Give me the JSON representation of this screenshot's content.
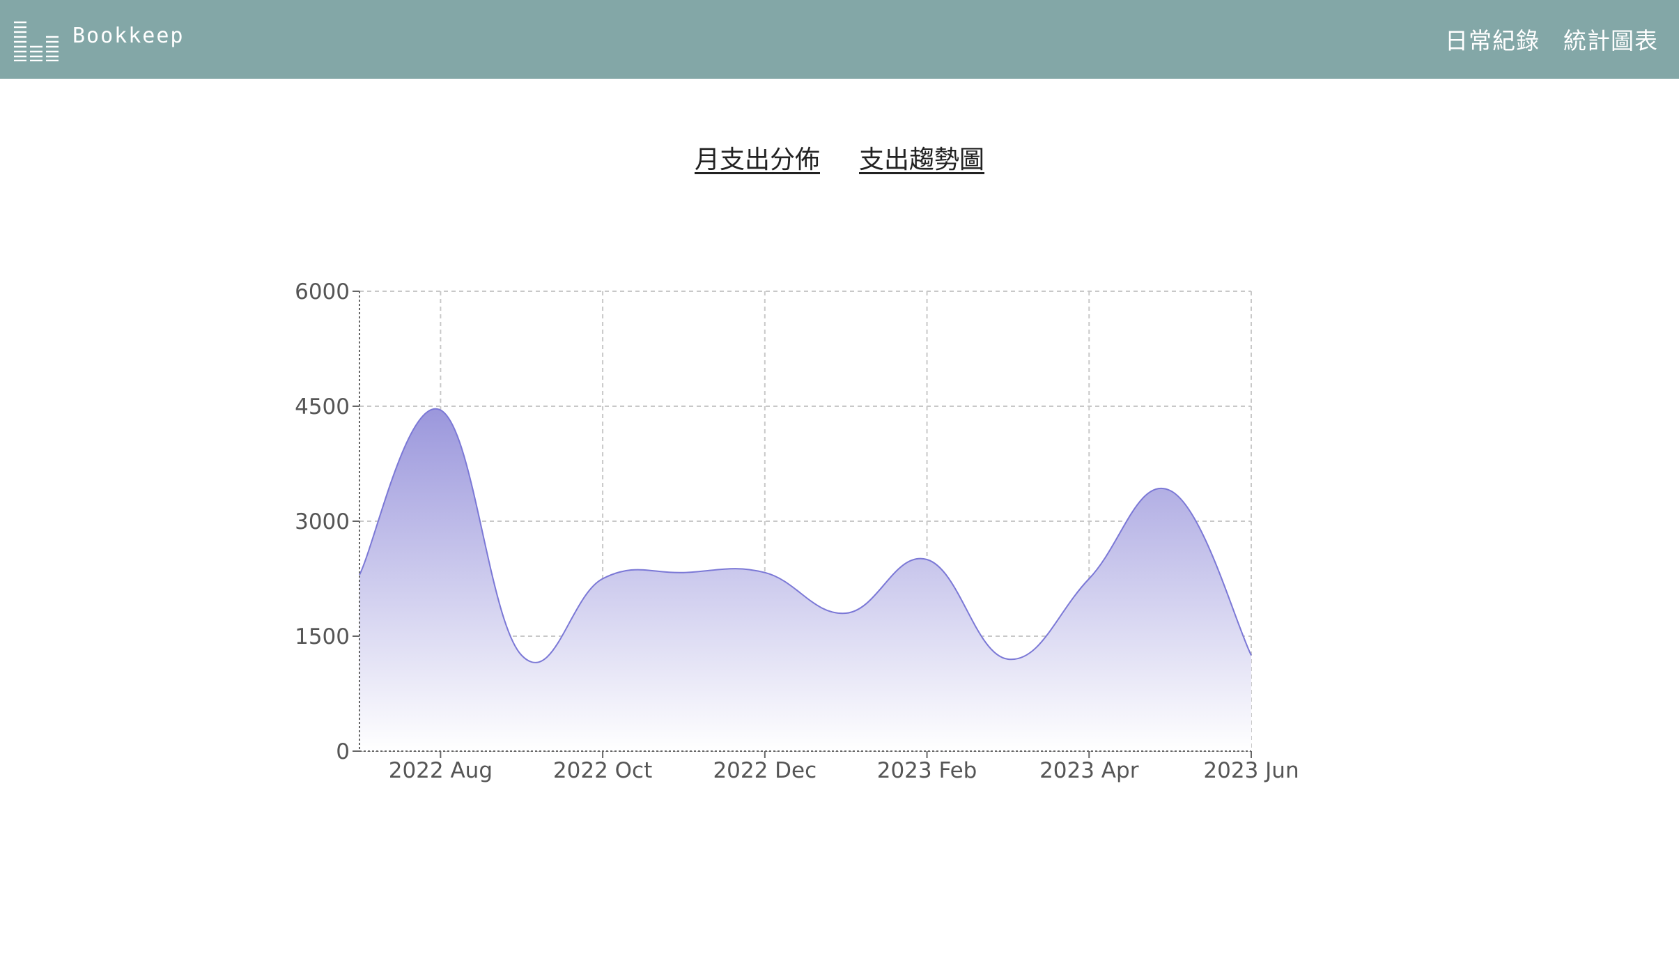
{
  "header": {
    "brand": "Bookkeep",
    "nav": [
      {
        "label": "日常紀錄"
      },
      {
        "label": "統計圖表"
      }
    ]
  },
  "tabs": [
    {
      "label": "月支出分佈"
    },
    {
      "label": "支出趨勢圖"
    }
  ],
  "colors": {
    "header_bg": "#83a7a7",
    "series_line": "#7b78d6",
    "series_fill_top": "#9b97dc",
    "series_fill_bottom": "#ffffff",
    "grid": "#c8c8c8"
  },
  "chart_data": {
    "type": "area",
    "title": "",
    "xlabel": "",
    "ylabel": "",
    "ylim": [
      0,
      6000
    ],
    "yticks": [
      0,
      1500,
      3000,
      4500,
      6000
    ],
    "xlim": [
      "2022-07",
      "2023-06"
    ],
    "xticks": [
      {
        "x": "2022-08",
        "label": "2022 Aug"
      },
      {
        "x": "2022-10",
        "label": "2022 Oct"
      },
      {
        "x": "2022-12",
        "label": "2022 Dec"
      },
      {
        "x": "2023-02",
        "label": "2023 Feb"
      },
      {
        "x": "2023-04",
        "label": "2023 Apr"
      },
      {
        "x": "2023-06",
        "label": "2023 Jun"
      }
    ],
    "grid": true,
    "curve": "smooth",
    "series": [
      {
        "x": [
          "2022-07",
          "2022-08",
          "2022-09",
          "2022-10",
          "2022-11",
          "2022-12",
          "2023-01",
          "2023-02",
          "2023-03",
          "2023-04",
          "2023-05",
          "2023-06"
        ],
        "values": [
          2300,
          4450,
          1250,
          2250,
          2330,
          2330,
          1800,
          2500,
          1200,
          2250,
          3400,
          1250
        ]
      }
    ]
  }
}
